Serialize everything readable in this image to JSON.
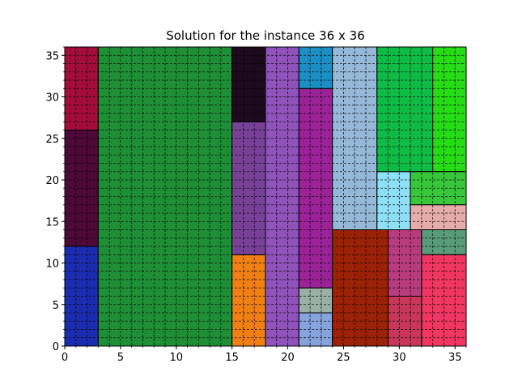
{
  "chart_data": {
    "type": "rectangle-packing",
    "title": "Solution for the instance 36 x 36",
    "xlabel": "",
    "ylabel": "",
    "xlim": [
      0,
      36
    ],
    "ylim": [
      0,
      36
    ],
    "xticks": [
      0,
      5,
      10,
      15,
      20,
      25,
      30,
      35
    ],
    "yticks": [
      0,
      5,
      10,
      15,
      20,
      25,
      30,
      35
    ],
    "grid": true,
    "grid_style": "dashed",
    "minor_ticks": 1,
    "rectangles": [
      {
        "x": 0,
        "y": 0,
        "w": 3,
        "h": 12,
        "color": "#1a2cb0"
      },
      {
        "x": 0,
        "y": 12,
        "w": 3,
        "h": 14,
        "color": "#4d0a38"
      },
      {
        "x": 0,
        "y": 26,
        "w": 3,
        "h": 10,
        "color": "#a30d3e"
      },
      {
        "x": 3,
        "y": 0,
        "w": 12,
        "h": 36,
        "color": "#1f8f37"
      },
      {
        "x": 15,
        "y": 0,
        "w": 3,
        "h": 11,
        "color": "#f07f14"
      },
      {
        "x": 15,
        "y": 11,
        "w": 3,
        "h": 16,
        "color": "#774197"
      },
      {
        "x": 15,
        "y": 27,
        "w": 3,
        "h": 9,
        "color": "#1e0a1e"
      },
      {
        "x": 18,
        "y": 0,
        "w": 3,
        "h": 36,
        "color": "#9052bb"
      },
      {
        "x": 21,
        "y": 0,
        "w": 3,
        "h": 4,
        "color": "#85a3dc"
      },
      {
        "x": 21,
        "y": 4,
        "w": 3,
        "h": 3,
        "color": "#98b0a6"
      },
      {
        "x": 21,
        "y": 7,
        "w": 3,
        "h": 24,
        "color": "#9a2397"
      },
      {
        "x": 21,
        "y": 31,
        "w": 3,
        "h": 5,
        "color": "#1b8fc3"
      },
      {
        "x": 24,
        "y": 0,
        "w": 5,
        "h": 14,
        "color": "#9b2206"
      },
      {
        "x": 24,
        "y": 14,
        "w": 4,
        "h": 22,
        "color": "#96b9d8"
      },
      {
        "x": 28,
        "y": 14,
        "w": 3,
        "h": 7,
        "color": "#8ee0f4"
      },
      {
        "x": 28,
        "y": 21,
        "w": 5,
        "h": 15,
        "color": "#0ebb45"
      },
      {
        "x": 33,
        "y": 21,
        "w": 3,
        "h": 15,
        "color": "#26dd15"
      },
      {
        "x": 31,
        "y": 17,
        "w": 5,
        "h": 4,
        "color": "#38c63a"
      },
      {
        "x": 31,
        "y": 14,
        "w": 5,
        "h": 3,
        "color": "#e6abab"
      },
      {
        "x": 29,
        "y": 0,
        "w": 3,
        "h": 6,
        "color": "#c8375a"
      },
      {
        "x": 29,
        "y": 6,
        "w": 3,
        "h": 8,
        "color": "#b83b7d"
      },
      {
        "x": 32,
        "y": 11,
        "w": 4,
        "h": 3,
        "color": "#599c7a"
      },
      {
        "x": 32,
        "y": 0,
        "w": 4,
        "h": 11,
        "color": "#f03764"
      }
    ]
  }
}
